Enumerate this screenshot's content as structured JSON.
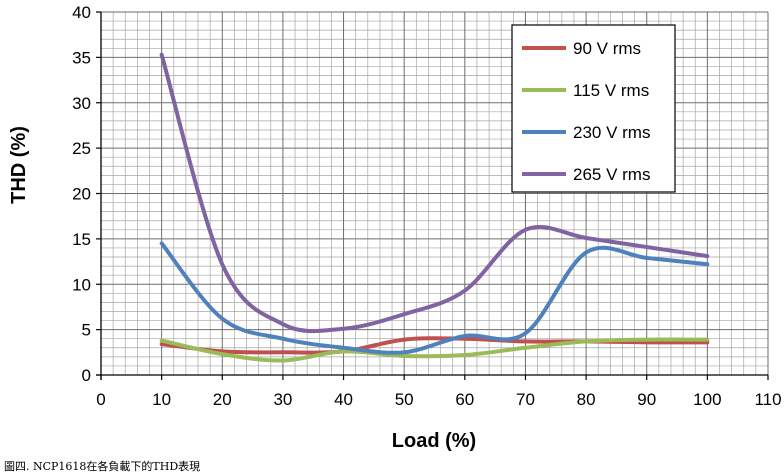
{
  "chart_data": {
    "type": "line",
    "title": "",
    "xlabel": "Load (%)",
    "ylabel": "THD (%)",
    "xlim": [
      0,
      110
    ],
    "ylim": [
      0,
      40
    ],
    "xticks": [
      0,
      10,
      20,
      30,
      40,
      50,
      60,
      70,
      80,
      90,
      100,
      110
    ],
    "yticks": [
      0,
      5,
      10,
      15,
      20,
      25,
      30,
      35,
      40
    ],
    "grid": true,
    "legend_position": "top-right",
    "series": [
      {
        "name": "90 V rms",
        "color": "#c0504d",
        "x": [
          10,
          20,
          30,
          40,
          50,
          60,
          70,
          80,
          90,
          100
        ],
        "y": [
          3.4,
          2.6,
          2.5,
          2.6,
          3.9,
          4.0,
          3.7,
          3.7,
          3.6,
          3.6
        ]
      },
      {
        "name": "115 V rms",
        "color": "#9bbb59",
        "x": [
          10,
          20,
          30,
          40,
          50,
          60,
          70,
          80,
          90,
          100
        ],
        "y": [
          3.8,
          2.3,
          1.6,
          2.6,
          2.1,
          2.2,
          3.0,
          3.7,
          3.9,
          3.9
        ]
      },
      {
        "name": "230 V rms",
        "color": "#4f81bd",
        "x": [
          10,
          20,
          30,
          40,
          50,
          60,
          70,
          80,
          90,
          100
        ],
        "y": [
          14.5,
          6.2,
          4.0,
          3.0,
          2.5,
          4.3,
          4.6,
          13.5,
          12.9,
          12.2
        ]
      },
      {
        "name": "265 V rms",
        "color": "#8064a2",
        "x": [
          10,
          20,
          30,
          40,
          50,
          60,
          70,
          80,
          90,
          100
        ],
        "y": [
          35.3,
          12.2,
          5.6,
          5.1,
          6.7,
          9.3,
          16.0,
          15.1,
          14.1,
          13.1
        ]
      }
    ]
  },
  "caption": "圖四. NCP1618在各負載下的THD表現"
}
